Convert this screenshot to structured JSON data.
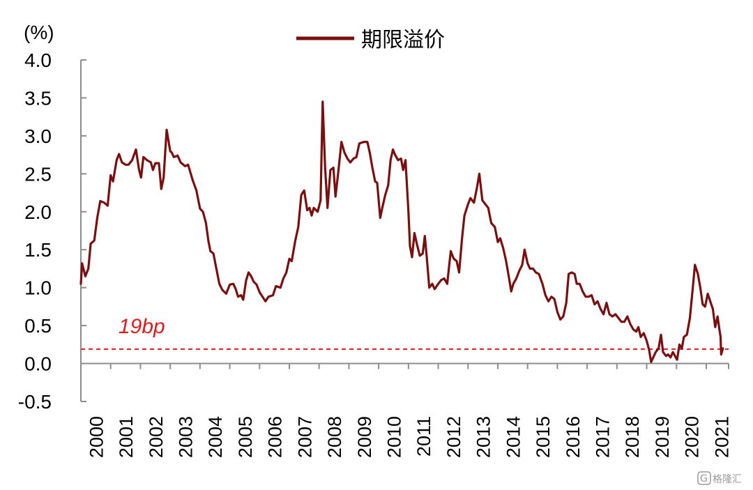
{
  "chart_data": {
    "type": "line",
    "unit_label": "(%)",
    "ylim": [
      -0.5,
      4.0
    ],
    "yticks": [
      "4.0",
      "3.5",
      "3.0",
      "2.5",
      "2.0",
      "1.5",
      "1.0",
      "0.5",
      "0.0",
      "-0.5"
    ],
    "xticks": [
      "2000",
      "2001",
      "2002",
      "2003",
      "2004",
      "2005",
      "2006",
      "2007",
      "2008",
      "2009",
      "2010",
      "2011",
      "2012",
      "2013",
      "2014",
      "2015",
      "2016",
      "2017",
      "2018",
      "2019",
      "2020",
      "2021"
    ],
    "xlim": [
      2000.0,
      2021.75
    ],
    "grid": false,
    "legend_position": "top",
    "series": [
      {
        "name": "期限溢价",
        "color": "#7b0f0f",
        "points": [
          [
            2000.0,
            1.05
          ],
          [
            2000.04,
            1.32
          ],
          [
            2000.15,
            1.15
          ],
          [
            2000.25,
            1.25
          ],
          [
            2000.33,
            1.58
          ],
          [
            2000.45,
            1.62
          ],
          [
            2000.55,
            1.92
          ],
          [
            2000.65,
            2.14
          ],
          [
            2000.78,
            2.12
          ],
          [
            2000.9,
            2.08
          ],
          [
            2001.0,
            2.48
          ],
          [
            2001.08,
            2.4
          ],
          [
            2001.2,
            2.68
          ],
          [
            2001.28,
            2.76
          ],
          [
            2001.38,
            2.65
          ],
          [
            2001.5,
            2.62
          ],
          [
            2001.6,
            2.62
          ],
          [
            2001.72,
            2.68
          ],
          [
            2001.85,
            2.82
          ],
          [
            2001.95,
            2.56
          ],
          [
            2002.02,
            2.45
          ],
          [
            2002.1,
            2.72
          ],
          [
            2002.22,
            2.68
          ],
          [
            2002.35,
            2.65
          ],
          [
            2002.42,
            2.55
          ],
          [
            2002.5,
            2.64
          ],
          [
            2002.62,
            2.64
          ],
          [
            2002.7,
            2.3
          ],
          [
            2002.78,
            2.45
          ],
          [
            2002.88,
            3.08
          ],
          [
            2003.0,
            2.8
          ],
          [
            2003.05,
            2.78
          ],
          [
            2003.12,
            2.72
          ],
          [
            2003.25,
            2.74
          ],
          [
            2003.35,
            2.65
          ],
          [
            2003.5,
            2.6
          ],
          [
            2003.6,
            2.62
          ],
          [
            2003.75,
            2.42
          ],
          [
            2003.88,
            2.28
          ],
          [
            2004.0,
            2.04
          ],
          [
            2004.1,
            2.0
          ],
          [
            2004.2,
            1.85
          ],
          [
            2004.28,
            1.62
          ],
          [
            2004.35,
            1.48
          ],
          [
            2004.45,
            1.45
          ],
          [
            2004.55,
            1.25
          ],
          [
            2004.65,
            1.05
          ],
          [
            2004.75,
            0.97
          ],
          [
            2004.88,
            0.92
          ],
          [
            2005.0,
            1.04
          ],
          [
            2005.12,
            1.05
          ],
          [
            2005.2,
            0.98
          ],
          [
            2005.28,
            0.88
          ],
          [
            2005.38,
            0.9
          ],
          [
            2005.45,
            0.84
          ],
          [
            2005.55,
            1.1
          ],
          [
            2005.63,
            1.2
          ],
          [
            2005.72,
            1.15
          ],
          [
            2005.8,
            1.08
          ],
          [
            2005.9,
            1.04
          ],
          [
            2006.0,
            0.94
          ],
          [
            2006.1,
            0.88
          ],
          [
            2006.2,
            0.82
          ],
          [
            2006.3,
            0.88
          ],
          [
            2006.45,
            0.9
          ],
          [
            2006.55,
            1.02
          ],
          [
            2006.7,
            1.0
          ],
          [
            2006.8,
            1.12
          ],
          [
            2006.9,
            1.2
          ],
          [
            2007.0,
            1.38
          ],
          [
            2007.08,
            1.35
          ],
          [
            2007.2,
            1.62
          ],
          [
            2007.3,
            1.8
          ],
          [
            2007.4,
            2.22
          ],
          [
            2007.5,
            2.28
          ],
          [
            2007.6,
            2.02
          ],
          [
            2007.68,
            2.05
          ],
          [
            2007.75,
            1.95
          ],
          [
            2007.82,
            2.05
          ],
          [
            2007.95,
            2.0
          ],
          [
            2008.05,
            2.15
          ],
          [
            2008.12,
            3.45
          ],
          [
            2008.2,
            2.6
          ],
          [
            2008.28,
            2.05
          ],
          [
            2008.38,
            2.55
          ],
          [
            2008.48,
            2.58
          ],
          [
            2008.55,
            2.2
          ],
          [
            2008.65,
            2.55
          ],
          [
            2008.75,
            2.92
          ],
          [
            2008.85,
            2.78
          ],
          [
            2008.95,
            2.7
          ],
          [
            2009.05,
            2.65
          ],
          [
            2009.15,
            2.7
          ],
          [
            2009.25,
            2.72
          ],
          [
            2009.35,
            2.9
          ],
          [
            2009.5,
            2.92
          ],
          [
            2009.62,
            2.92
          ],
          [
            2009.7,
            2.78
          ],
          [
            2009.78,
            2.6
          ],
          [
            2009.88,
            2.4
          ],
          [
            2009.95,
            2.38
          ],
          [
            2010.05,
            1.92
          ],
          [
            2010.12,
            2.05
          ],
          [
            2010.22,
            2.22
          ],
          [
            2010.32,
            2.35
          ],
          [
            2010.4,
            2.68
          ],
          [
            2010.48,
            2.82
          ],
          [
            2010.55,
            2.75
          ],
          [
            2010.65,
            2.68
          ],
          [
            2010.75,
            2.7
          ],
          [
            2010.82,
            2.55
          ],
          [
            2010.9,
            2.68
          ],
          [
            2011.0,
            2.0
          ],
          [
            2011.05,
            1.55
          ],
          [
            2011.12,
            1.4
          ],
          [
            2011.2,
            1.72
          ],
          [
            2011.28,
            1.58
          ],
          [
            2011.38,
            1.42
          ],
          [
            2011.48,
            1.45
          ],
          [
            2011.55,
            1.68
          ],
          [
            2011.62,
            1.38
          ],
          [
            2011.7,
            1.0
          ],
          [
            2011.8,
            1.05
          ],
          [
            2011.88,
            0.98
          ],
          [
            2012.0,
            1.05
          ],
          [
            2012.1,
            1.1
          ],
          [
            2012.2,
            1.12
          ],
          [
            2012.3,
            1.05
          ],
          [
            2012.42,
            1.48
          ],
          [
            2012.52,
            1.38
          ],
          [
            2012.62,
            1.35
          ],
          [
            2012.7,
            1.2
          ],
          [
            2012.8,
            1.65
          ],
          [
            2012.88,
            1.95
          ],
          [
            2013.0,
            2.1
          ],
          [
            2013.08,
            2.18
          ],
          [
            2013.2,
            2.12
          ],
          [
            2013.3,
            2.32
          ],
          [
            2013.38,
            2.5
          ],
          [
            2013.48,
            2.15
          ],
          [
            2013.58,
            2.1
          ],
          [
            2013.68,
            2.05
          ],
          [
            2013.78,
            1.85
          ],
          [
            2013.9,
            1.8
          ],
          [
            2014.0,
            1.6
          ],
          [
            2014.08,
            1.65
          ],
          [
            2014.18,
            1.52
          ],
          [
            2014.28,
            1.35
          ],
          [
            2014.38,
            1.12
          ],
          [
            2014.45,
            0.95
          ],
          [
            2014.52,
            1.05
          ],
          [
            2014.62,
            1.12
          ],
          [
            2014.72,
            1.22
          ],
          [
            2014.82,
            1.3
          ],
          [
            2014.9,
            1.5
          ],
          [
            2015.0,
            1.32
          ],
          [
            2015.08,
            1.25
          ],
          [
            2015.18,
            1.25
          ],
          [
            2015.28,
            1.2
          ],
          [
            2015.38,
            1.18
          ],
          [
            2015.5,
            1.05
          ],
          [
            2015.6,
            0.9
          ],
          [
            2015.7,
            0.82
          ],
          [
            2015.8,
            0.88
          ],
          [
            2015.9,
            0.85
          ],
          [
            2016.0,
            0.68
          ],
          [
            2016.1,
            0.58
          ],
          [
            2016.2,
            0.62
          ],
          [
            2016.3,
            0.8
          ],
          [
            2016.38,
            1.18
          ],
          [
            2016.48,
            1.2
          ],
          [
            2016.58,
            1.18
          ],
          [
            2016.65,
            1.05
          ],
          [
            2016.75,
            1.05
          ],
          [
            2016.85,
            0.95
          ],
          [
            2016.95,
            0.88
          ],
          [
            2017.05,
            0.88
          ],
          [
            2017.15,
            0.9
          ],
          [
            2017.25,
            0.78
          ],
          [
            2017.35,
            0.82
          ],
          [
            2017.45,
            0.72
          ],
          [
            2017.55,
            0.65
          ],
          [
            2017.65,
            0.8
          ],
          [
            2017.75,
            0.65
          ],
          [
            2017.85,
            0.62
          ],
          [
            2017.95,
            0.65
          ],
          [
            2018.05,
            0.6
          ],
          [
            2018.15,
            0.55
          ],
          [
            2018.25,
            0.55
          ],
          [
            2018.35,
            0.62
          ],
          [
            2018.45,
            0.52
          ],
          [
            2018.55,
            0.45
          ],
          [
            2018.65,
            0.42
          ],
          [
            2018.72,
            0.48
          ],
          [
            2018.8,
            0.35
          ],
          [
            2018.9,
            0.4
          ],
          [
            2019.0,
            0.3
          ],
          [
            2019.08,
            0.18
          ],
          [
            2019.15,
            0.02
          ],
          [
            2019.22,
            0.08
          ],
          [
            2019.3,
            0.15
          ],
          [
            2019.4,
            0.2
          ],
          [
            2019.48,
            0.38
          ],
          [
            2019.55,
            0.15
          ],
          [
            2019.65,
            0.1
          ],
          [
            2019.72,
            0.12
          ],
          [
            2019.8,
            0.08
          ],
          [
            2019.88,
            0.15
          ],
          [
            2019.95,
            0.1
          ],
          [
            2020.02,
            0.05
          ],
          [
            2020.1,
            0.25
          ],
          [
            2020.18,
            0.2
          ],
          [
            2020.25,
            0.35
          ],
          [
            2020.35,
            0.38
          ],
          [
            2020.45,
            0.6
          ],
          [
            2020.55,
            1.0
          ],
          [
            2020.62,
            1.3
          ],
          [
            2020.72,
            1.18
          ],
          [
            2020.8,
            1.0
          ],
          [
            2020.88,
            0.78
          ],
          [
            2020.96,
            0.75
          ],
          [
            2021.05,
            0.92
          ],
          [
            2021.15,
            0.8
          ],
          [
            2021.22,
            0.72
          ],
          [
            2021.3,
            0.48
          ],
          [
            2021.38,
            0.62
          ],
          [
            2021.44,
            0.45
          ],
          [
            2021.48,
            0.35
          ],
          [
            2021.5,
            0.12
          ],
          [
            2021.56,
            0.2
          ]
        ]
      }
    ],
    "reference_line": {
      "value": 0.19,
      "label": "19bp",
      "color": "#e01b1b",
      "style": "dashed"
    }
  },
  "watermark": {
    "text": "格隆汇"
  }
}
